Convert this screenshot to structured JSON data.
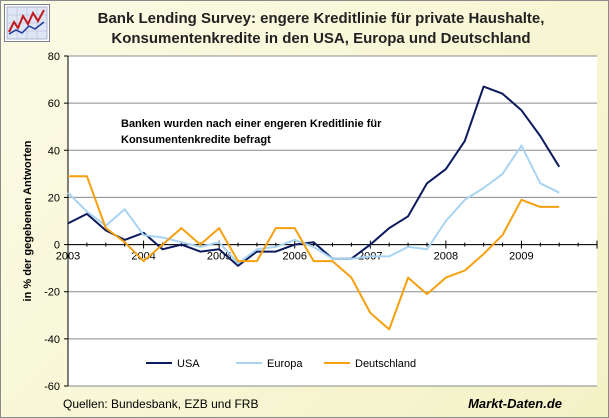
{
  "title_lines": [
    "Bank Lending Survey: engere Kreditlinie für private Haushalte,",
    "Konsumentenkredite in den USA, Europa und Deutschland"
  ],
  "source": "Quellen: Bundesbank, EZB und FRB",
  "brand": "Markt-Daten.de",
  "chart_data": {
    "type": "line",
    "title": "Bank Lending Survey: engere Kreditlinie für private Haushalte, Konsumentenkredite in den USA, Europa und Deutschland",
    "ylabel": "in % der gegebenen Antworten",
    "xlabel": "",
    "ylim": [
      -60,
      80
    ],
    "yticks": [
      80,
      60,
      40,
      20,
      0,
      -20,
      -40,
      -60
    ],
    "xlim": [
      2003.0,
      2010.0
    ],
    "xtick_values": [
      2003,
      2004,
      2005,
      2006,
      2007,
      2008,
      2009
    ],
    "xtick_labels": [
      "2003",
      "2004",
      "2005",
      "2006",
      "2007",
      "2008",
      "2009"
    ],
    "grid": "horizontal",
    "legend_position": "bottom",
    "annotation_lines": [
      "Banken wurden nach einer engeren Kreditlinie für",
      "Konsumentenkredite befragt"
    ],
    "series": [
      {
        "name": "USA",
        "color": "#0d1a5e",
        "x": [
          2003.0,
          2003.25,
          2003.5,
          2003.75,
          2004.0,
          2004.25,
          2004.5,
          2004.75,
          2005.0,
          2005.25,
          2005.5,
          2005.75,
          2006.0,
          2006.25,
          2006.5,
          2006.75,
          2007.0,
          2007.25,
          2007.5,
          2007.75,
          2008.0,
          2008.25,
          2008.5,
          2008.75,
          2009.0,
          2009.25,
          2009.5
        ],
        "y": [
          9,
          13,
          6,
          2,
          5,
          -2,
          0,
          -3,
          -2,
          -9,
          -3,
          -3,
          0,
          1,
          -6,
          -6,
          0,
          7,
          12,
          26,
          32,
          44,
          67,
          64,
          57,
          46,
          33
        ]
      },
      {
        "name": "Europa",
        "color": "#a8d4f2",
        "x": [
          2003.0,
          2003.25,
          2003.5,
          2003.75,
          2004.0,
          2004.25,
          2004.5,
          2004.75,
          2005.0,
          2005.25,
          2005.5,
          2005.75,
          2006.0,
          2006.25,
          2006.5,
          2006.75,
          2007.0,
          2007.25,
          2007.5,
          2007.75,
          2008.0,
          2008.25,
          2008.5,
          2008.75,
          2009.0,
          2009.25,
          2009.5
        ],
        "y": [
          22,
          14,
          8,
          15,
          4,
          3,
          1,
          -1,
          1,
          -8,
          -2,
          -1,
          2,
          -1,
          -6,
          -6,
          -5,
          -5,
          -1,
          -2,
          10,
          19,
          24,
          30,
          42,
          26,
          22
        ]
      },
      {
        "name": "Deutschland",
        "color": "#f5a00f",
        "x": [
          2003.0,
          2003.25,
          2003.5,
          2003.75,
          2004.0,
          2004.25,
          2004.5,
          2004.75,
          2005.0,
          2005.25,
          2005.5,
          2005.75,
          2006.0,
          2006.25,
          2006.5,
          2006.75,
          2007.0,
          2007.25,
          2007.5,
          2007.75,
          2008.0,
          2008.25,
          2008.5,
          2008.75,
          2009.0,
          2009.25,
          2009.5
        ],
        "y": [
          29,
          29,
          7,
          1,
          -7,
          0,
          7,
          0,
          7,
          -7,
          -7,
          7,
          7,
          -7,
          -7,
          -14,
          -29,
          -36,
          -14,
          -21,
          -14,
          -11,
          -4,
          4,
          19,
          16,
          16
        ]
      }
    ]
  }
}
